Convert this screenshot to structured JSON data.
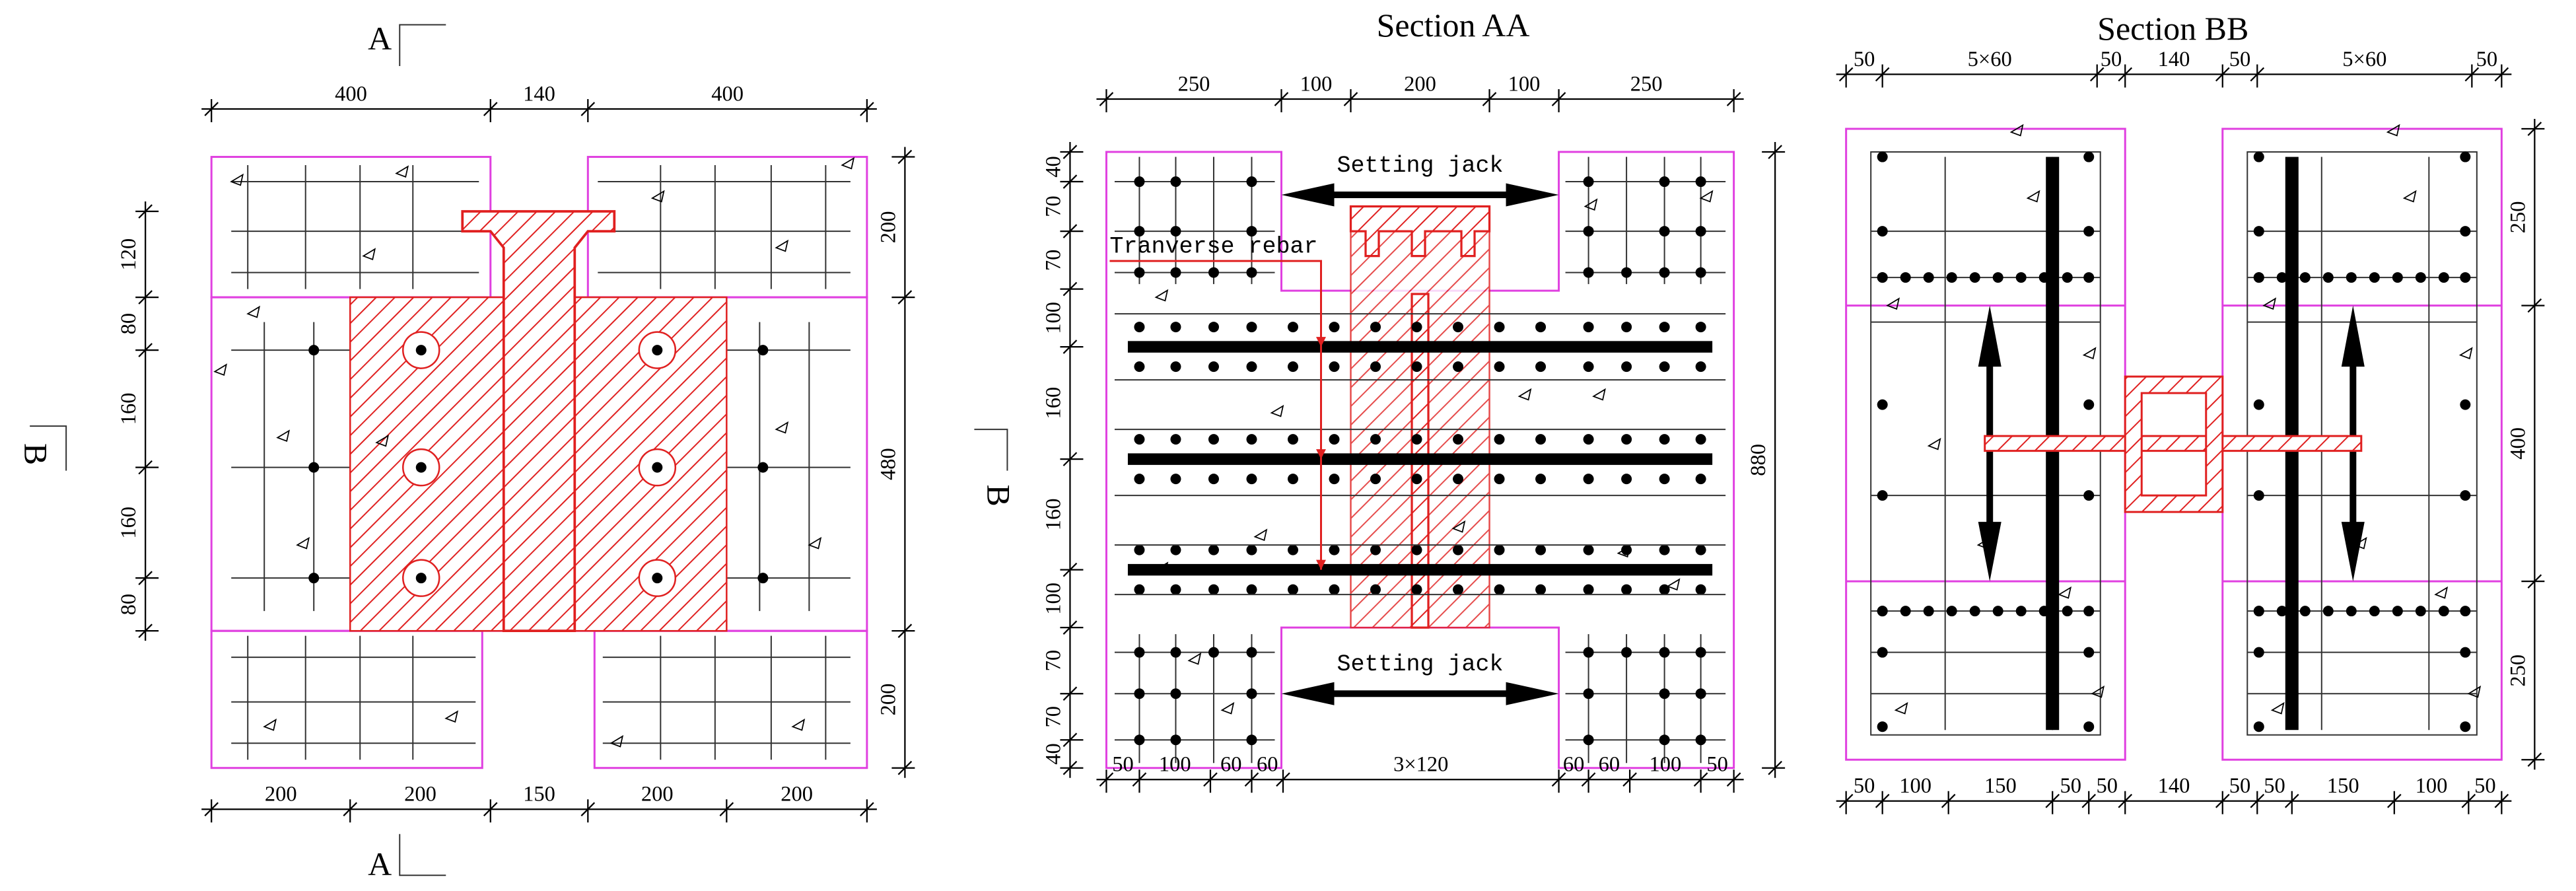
{
  "plan": {
    "section_marks": [
      "A",
      "A",
      "B"
    ],
    "dims_top": [
      "400",
      "140",
      "400"
    ],
    "dims_bottom": [
      "200",
      "200",
      "150",
      "200",
      "200"
    ],
    "dims_left": [
      "120",
      "80",
      "160",
      "160",
      "80"
    ],
    "dims_right": [
      "200",
      "480",
      "200"
    ]
  },
  "section_aa": {
    "title": "Section AA",
    "jack_labels": [
      "Setting jack",
      "Setting jack"
    ],
    "rebar_label": "Tranverse rebar",
    "section_mark": "B",
    "dims_top": [
      "250",
      "100",
      "200",
      "100",
      "250"
    ],
    "dims_bottom": [
      "50",
      "100",
      "60",
      "60",
      "3×120",
      "60",
      "60",
      "100",
      "50"
    ],
    "dims_left": [
      "40",
      "70",
      "70",
      "100",
      "160",
      "160",
      "100",
      "70",
      "70",
      "40"
    ],
    "dims_right": [
      "880"
    ]
  },
  "section_bb": {
    "title": "Section BB",
    "dims_top": [
      "50",
      "5×60",
      "50",
      "140",
      "50",
      "5×60",
      "50"
    ],
    "dims_bottom": [
      "50",
      "100",
      "150",
      "50",
      "50",
      "140",
      "50",
      "50",
      "150",
      "100",
      "50"
    ],
    "dims_right": [
      "250",
      "400",
      "250"
    ]
  }
}
